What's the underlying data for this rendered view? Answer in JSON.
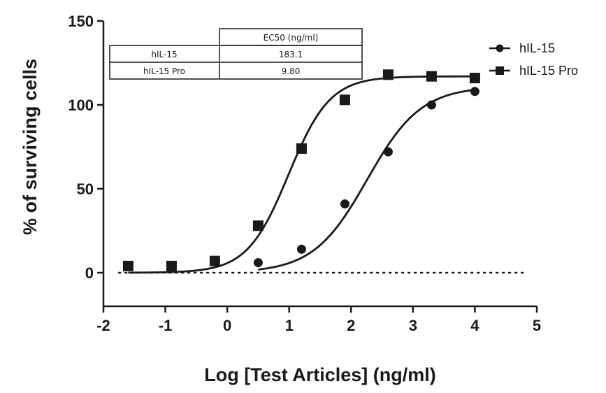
{
  "chart_data": {
    "type": "scatter",
    "xlabel": "Log [Test Articles] (ng/ml)",
    "ylabel": "% of surviving cells",
    "xlim": [
      -2,
      5
    ],
    "ylim": [
      -20,
      150
    ],
    "x_ticks": [
      -2,
      -1,
      0,
      1,
      2,
      3,
      4,
      5
    ],
    "y_ticks": [
      0,
      50,
      100,
      150
    ],
    "x_tick_labels": [
      "-2",
      "-1",
      "0",
      "1",
      "2",
      "3",
      "4",
      "5"
    ],
    "y_tick_labels": [
      "0",
      "50",
      "100",
      "150"
    ],
    "reference_line": {
      "y": 0,
      "style": "dotted"
    },
    "legend_position": "top-right",
    "series": [
      {
        "name": "hIL-15",
        "marker": "circle",
        "x": [
          0.5,
          1.2,
          1.9,
          2.6,
          3.3,
          4.0
        ],
        "y": [
          6,
          14,
          41,
          72,
          100,
          108
        ],
        "curve": {
          "bottom": 0,
          "top": 111,
          "log_ec50": 2.26,
          "hill": 1.0
        }
      },
      {
        "name": "hIL-15 Pro",
        "marker": "square",
        "x": [
          -1.6,
          -0.9,
          -0.2,
          0.5,
          1.2,
          1.9,
          2.6,
          3.3,
          4.0
        ],
        "y": [
          4,
          4,
          7,
          28,
          74,
          103,
          118,
          117,
          116
        ],
        "curve": {
          "bottom": 0,
          "top": 117,
          "log_ec50": 0.99,
          "hill": 1.3
        }
      }
    ],
    "inset_table": {
      "header": [
        "",
        "EC50 (ng/ml)"
      ],
      "rows": [
        [
          "hIL-15",
          "183.1"
        ],
        [
          "hIL-15 Pro",
          "9.80"
        ]
      ]
    }
  }
}
